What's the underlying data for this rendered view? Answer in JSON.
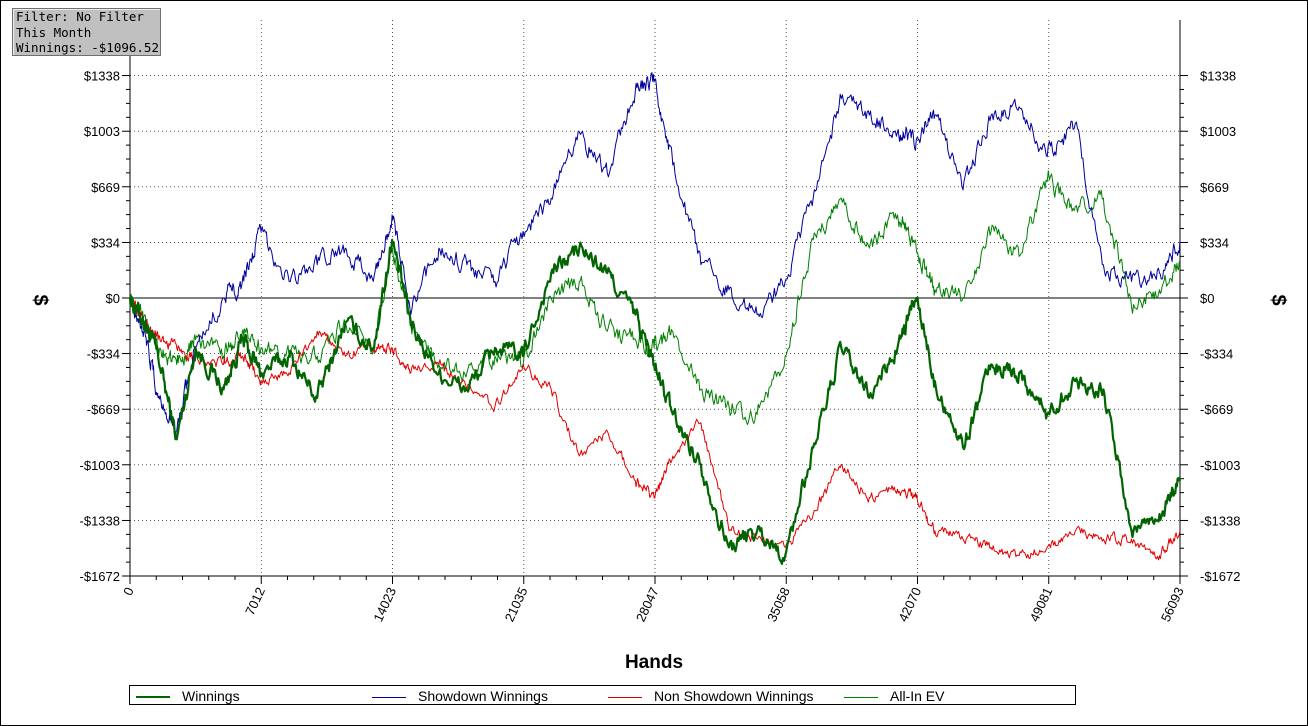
{
  "filter": {
    "line1": "Filter: No Filter",
    "line2": "This Month",
    "line3": "Winnings: -$1096.52"
  },
  "chart_data": {
    "type": "line",
    "xlabel": "Hands",
    "ylabel_left": "$",
    "ylabel_right": "$",
    "xlim": [
      0,
      56093
    ],
    "ylim": [
      -1672,
      1672
    ],
    "x_ticks": [
      0,
      7012,
      14023,
      21035,
      28047,
      35058,
      42070,
      49081,
      56093
    ],
    "y_ticks": [
      -1672,
      -1338,
      -1003,
      -669,
      -334,
      0,
      334,
      669,
      1003,
      1338
    ],
    "y_tick_labels": [
      "-$1672",
      "-$1338",
      "-$1003",
      "-$669",
      "-$334",
      "$0",
      "$334",
      "$669",
      "$1003",
      "$1338"
    ],
    "grid": true,
    "legend_position": "bottom",
    "series": [
      {
        "name": "Winnings",
        "color": "#006400",
        "x": [
          0,
          800,
          1500,
          2500,
          3500,
          5000,
          6000,
          7000,
          8500,
          10000,
          11500,
          13000,
          14000,
          15000,
          16500,
          18000,
          19500,
          21000,
          22500,
          24000,
          25500,
          27000,
          28000,
          29000,
          30500,
          32000,
          33500,
          35000,
          36500,
          38000,
          39500,
          41000,
          42000,
          43000,
          44500,
          46000,
          47500,
          49000,
          50500,
          52000,
          53500,
          55000,
          56093
        ],
        "y": [
          0,
          -150,
          -350,
          -850,
          -300,
          -550,
          -250,
          -450,
          -350,
          -600,
          -150,
          -300,
          350,
          -150,
          -450,
          -550,
          -300,
          -350,
          150,
          300,
          150,
          -100,
          -400,
          -700,
          -1000,
          -1500,
          -1400,
          -1550,
          -900,
          -300,
          -600,
          -300,
          0,
          -500,
          -900,
          -400,
          -450,
          -700,
          -500,
          -550,
          -1400,
          -1300,
          -1100
        ]
      },
      {
        "name": "Showdown Winnings",
        "color": "#00009c",
        "x": [
          0,
          800,
          1500,
          2500,
          3500,
          5000,
          6000,
          7000,
          8500,
          10000,
          11500,
          13000,
          14000,
          15000,
          16500,
          18000,
          19500,
          21000,
          22500,
          24000,
          25500,
          27000,
          28000,
          29000,
          30500,
          32000,
          33500,
          35000,
          36500,
          38000,
          39500,
          41000,
          42000,
          43000,
          44500,
          46000,
          47500,
          49000,
          50500,
          52000,
          53500,
          55000,
          56093
        ],
        "y": [
          0,
          -200,
          -600,
          -800,
          -300,
          0,
          100,
          400,
          100,
          200,
          300,
          100,
          500,
          -100,
          300,
          200,
          100,
          400,
          600,
          1000,
          750,
          1250,
          1300,
          800,
          200,
          50,
          -100,
          100,
          600,
          1200,
          1100,
          1000,
          950,
          1100,
          650,
          1100,
          1150,
          850,
          1050,
          200,
          100,
          150,
          350
        ]
      },
      {
        "name": "Non Showdown Winnings",
        "color": "#e00000",
        "x": [
          0,
          800,
          1500,
          2500,
          3500,
          5000,
          6000,
          7000,
          8500,
          10000,
          11500,
          13000,
          14000,
          15000,
          16500,
          18000,
          19500,
          21000,
          22500,
          24000,
          25500,
          27000,
          28000,
          29000,
          30500,
          32000,
          33500,
          35000,
          36500,
          38000,
          39500,
          41000,
          42000,
          43000,
          44500,
          46000,
          47500,
          49000,
          50500,
          52000,
          53500,
          55000,
          56093
        ],
        "y": [
          0,
          -150,
          -250,
          -300,
          -350,
          -400,
          -350,
          -500,
          -450,
          -200,
          -350,
          -300,
          -300,
          -450,
          -400,
          -550,
          -650,
          -400,
          -550,
          -950,
          -800,
          -1100,
          -1200,
          -950,
          -750,
          -1400,
          -1450,
          -1500,
          -1300,
          -1000,
          -1200,
          -1150,
          -1200,
          -1400,
          -1450,
          -1500,
          -1550,
          -1500,
          -1400,
          -1450,
          -1450,
          -1550,
          -1400
        ]
      },
      {
        "name": "All-In EV",
        "color": "#008000",
        "x": [
          0,
          800,
          1500,
          2500,
          3500,
          5000,
          6000,
          7000,
          8500,
          10000,
          11500,
          13000,
          14000,
          15000,
          16500,
          18000,
          19500,
          21000,
          22500,
          24000,
          25500,
          27000,
          28000,
          29000,
          30500,
          32000,
          33500,
          35000,
          36500,
          38000,
          39500,
          41000,
          42000,
          43000,
          44500,
          46000,
          47500,
          49000,
          50500,
          52000,
          53500,
          55000,
          56093
        ],
        "y": [
          0,
          -100,
          -300,
          -400,
          -250,
          -350,
          -200,
          -300,
          -350,
          -350,
          -150,
          -300,
          300,
          -150,
          -400,
          -450,
          -350,
          -400,
          0,
          100,
          -200,
          -250,
          -300,
          -200,
          -550,
          -650,
          -700,
          -350,
          350,
          600,
          300,
          500,
          300,
          50,
          0,
          400,
          250,
          700,
          550,
          600,
          -50,
          50,
          200
        ]
      }
    ]
  }
}
